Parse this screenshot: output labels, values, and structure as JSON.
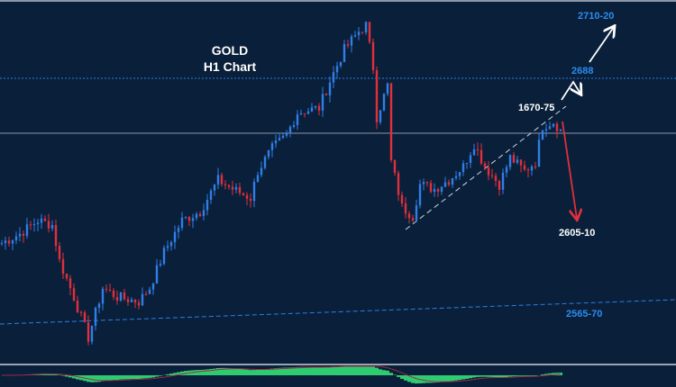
{
  "chart_data": {
    "type": "candlestick",
    "title": "GOLD",
    "subtitle": "H1 Chart",
    "close_path": {
      "bar": [
        0,
        5,
        10,
        14,
        16,
        20,
        24,
        28,
        32,
        38,
        41,
        45,
        50,
        55,
        60,
        64,
        69,
        71,
        75,
        79,
        82,
        88,
        91,
        95,
        99,
        101,
        103,
        104,
        107,
        108,
        111,
        114,
        116,
        120,
        124,
        128,
        131,
        134,
        138,
        141,
        145,
        148,
        150,
        153,
        155
      ],
      "price": [
        2597.4,
        2602.4,
        2609.8,
        2607.3,
        2587.5,
        2567.7,
        2545.4,
        2572.7,
        2567.7,
        2565.2,
        2572.7,
        2592.5,
        2609.8,
        2614.7,
        2632.1,
        2627.1,
        2622.2,
        2637.0,
        2649.4,
        2656.8,
        2669.2,
        2671.7,
        2686.5,
        2703.8,
        2713.7,
        2717.2,
        2693.9,
        2666.7,
        2684.0,
        2642.0,
        2617.2,
        2612.3,
        2629.6,
        2627.1,
        2632.1,
        2639.5,
        2651.9,
        2639.5,
        2629.6,
        2644.4,
        2637.0,
        2642.0,
        2661.8,
        2664.2,
        2659.3
      ]
    },
    "ylim": [
      2530,
      2730
    ],
    "levels": {
      "resistance": {
        "label": "2688",
        "price": 2688
      },
      "target_up": {
        "label": "2710-20"
      },
      "pivot": {
        "label": "1670-75"
      },
      "target_down": {
        "label": "2605-10"
      },
      "support": {
        "label": "2565-70"
      }
    },
    "colors": {
      "up": "#2f7fe6",
      "down": "#e0303a",
      "label_blue": "#2b8cf0",
      "background": "#0a1f3a",
      "macd": "#2ecc71"
    }
  }
}
